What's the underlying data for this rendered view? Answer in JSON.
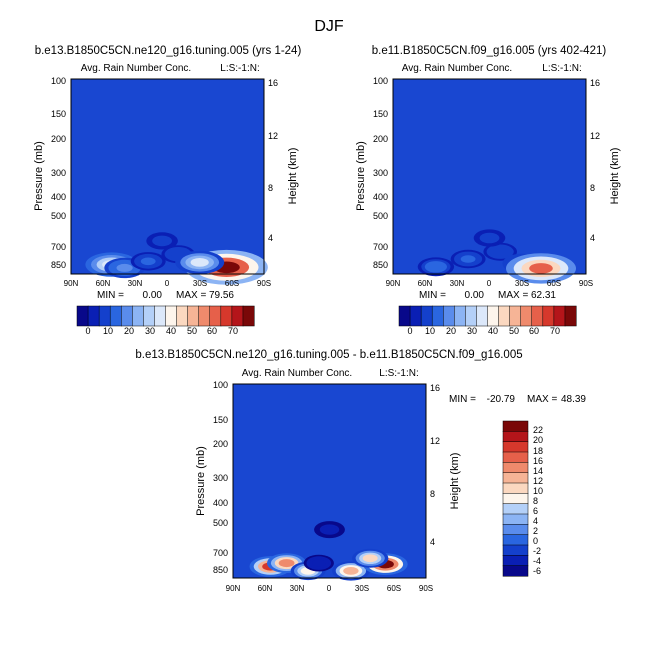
{
  "figure_title": "DJF",
  "colors": {
    "field_background": "#1947d1",
    "colorbar_top": [
      "#08088a",
      "#0a1fb4",
      "#1440cc",
      "#2a66e0",
      "#5a8cec",
      "#8cb4f4",
      "#b4d0f8",
      "#dce8fa",
      "#fdf5ec",
      "#fbd8c0",
      "#f6b496",
      "#ef8a6c",
      "#e6604a",
      "#d6382c",
      "#b4151a",
      "#7a0808"
    ],
    "colorbar_diff": [
      "#08088a",
      "#0a1fb4",
      "#1440cc",
      "#2a66e0",
      "#5a8cec",
      "#8cb4f4",
      "#b4d0f8",
      "#fdf5ec",
      "#fbd8c0",
      "#f6b496",
      "#ef8a6c",
      "#e6604a",
      "#d6382c",
      "#b4151a",
      "#7a0808"
    ]
  },
  "chart_data": [
    {
      "type": "heatmap",
      "title": "b.e13.B1850C5CN.ne120_g16.tuning.005 (yrs 1-24)",
      "subtitle_left": "Avg. Rain Number Conc.",
      "subtitle_right": "L:S:-1:N:",
      "ylabel": "Pressure (mb)",
      "ylabel_right": "Height (km)",
      "x_ticks": [
        "90N",
        "60N",
        "30N",
        "0",
        "30S",
        "60S",
        "90S"
      ],
      "y_ticks": [
        "100",
        "150",
        "200",
        "300",
        "400",
        "500",
        "700",
        "850"
      ],
      "y_ticks_right": [
        "16",
        "12",
        "8",
        "4"
      ],
      "min_label": "MIN =",
      "min_value": "0.00",
      "max_label": "MAX =",
      "max_value": "79.56",
      "colorbar_labels": [
        "0",
        "10",
        "20",
        "30",
        "40",
        "50",
        "60",
        "70"
      ],
      "blobs": [
        {
          "lat": 52,
          "p": 810,
          "v": 35
        },
        {
          "lat": 40,
          "p": 840,
          "v": 18
        },
        {
          "lat": 18,
          "p": 780,
          "v": 10
        },
        {
          "lat": -10,
          "p": 720,
          "v": 8
        },
        {
          "lat": -45,
          "p": 820,
          "v": 55
        },
        {
          "lat": -55,
          "p": 835,
          "v": 78
        },
        {
          "lat": -30,
          "p": 790,
          "v": 30
        },
        {
          "lat": 5,
          "p": 620,
          "v": 5
        }
      ]
    },
    {
      "type": "heatmap",
      "title": "b.e11.B1850C5CN.f09_g16.005 (yrs 402-421)",
      "subtitle_left": "Avg. Rain Number Conc.",
      "subtitle_right": "L:S:-1:N:",
      "ylabel": "Pressure (mb)",
      "ylabel_right": "Height (km)",
      "x_ticks": [
        "90N",
        "60N",
        "30N",
        "0",
        "30S",
        "60S",
        "90S"
      ],
      "y_ticks": [
        "100",
        "150",
        "200",
        "300",
        "400",
        "500",
        "700",
        "850"
      ],
      "y_ticks_right": [
        "16",
        "12",
        "8",
        "4"
      ],
      "min_label": "MIN =",
      "min_value": "0.00",
      "max_label": "MAX =",
      "max_value": "62.31",
      "colorbar_labels": [
        "0",
        "10",
        "20",
        "30",
        "40",
        "50",
        "60",
        "70"
      ],
      "blobs": [
        {
          "lat": 50,
          "p": 830,
          "v": 12
        },
        {
          "lat": 20,
          "p": 760,
          "v": 10
        },
        {
          "lat": -10,
          "p": 700,
          "v": 8
        },
        {
          "lat": -30,
          "p": 800,
          "v": 15
        },
        {
          "lat": -48,
          "p": 845,
          "v": 60
        },
        {
          "lat": 0,
          "p": 600,
          "v": 5
        }
      ]
    },
    {
      "type": "heatmap",
      "title": "b.e13.B1850C5CN.ne120_g16.tuning.005 - b.e11.B1850C5CN.f09_g16.005",
      "subtitle_left": "Avg. Rain Number Conc.",
      "subtitle_right": "L:S:-1:N:",
      "ylabel": "Pressure (mb)",
      "ylabel_right": "Height (km)",
      "x_ticks": [
        "90N",
        "60N",
        "30N",
        "0",
        "30S",
        "60S",
        "90S"
      ],
      "y_ticks": [
        "100",
        "150",
        "200",
        "300",
        "400",
        "500",
        "700",
        "850"
      ],
      "y_ticks_right": [
        "16",
        "12",
        "8",
        "4"
      ],
      "min_label": "MIN =",
      "min_value": "-20.79",
      "max_label": "MAX =",
      "max_value": "48.39",
      "colorbar_labels": [
        "22",
        "20",
        "18",
        "16",
        "14",
        "12",
        "10",
        "8",
        "6",
        "4",
        "2",
        "0",
        "-2",
        "-4",
        "-6"
      ],
      "blobs": [
        {
          "lat": 55,
          "p": 790,
          "v": 20
        },
        {
          "lat": 40,
          "p": 760,
          "v": 16
        },
        {
          "lat": 20,
          "p": 830,
          "v": 10
        },
        {
          "lat": -20,
          "p": 830,
          "v": 14
        },
        {
          "lat": -52,
          "p": 770,
          "v": 24
        },
        {
          "lat": -38,
          "p": 720,
          "v": 12
        },
        {
          "lat": 0,
          "p": 520,
          "v": -4
        },
        {
          "lat": 10,
          "p": 760,
          "v": -3
        }
      ]
    }
  ]
}
